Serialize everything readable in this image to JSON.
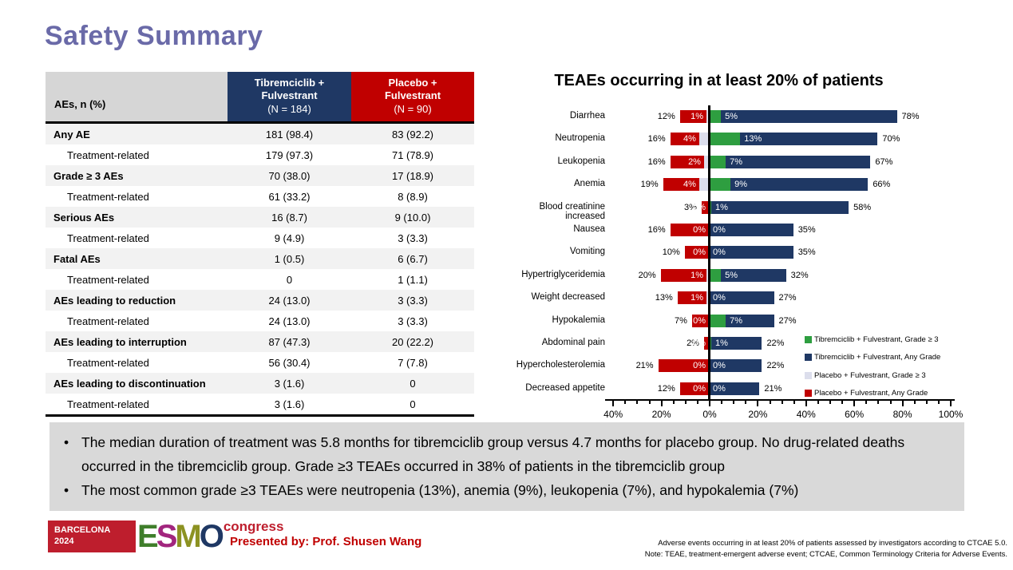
{
  "slide": {
    "title": "Safety Summary"
  },
  "table": {
    "header_label": "AEs, n (%)",
    "col_tibre": {
      "line1": "Tibremciclib +",
      "line2": "Fulvestrant",
      "n": "(N = 184)"
    },
    "col_placebo": {
      "line1": "Placebo +",
      "line2": "Fulvestrant",
      "n": "(N = 90)"
    },
    "rows": [
      {
        "label": "Any AE",
        "bold": true,
        "tibre": "181 (98.4)",
        "placebo": "83 (92.2)"
      },
      {
        "label": "Treatment-related",
        "bold": false,
        "tibre": "179 (97.3)",
        "placebo": "71 (78.9)"
      },
      {
        "label": "Grade ≥ 3 AEs",
        "bold": true,
        "tibre": "70 (38.0)",
        "placebo": "17 (18.9)"
      },
      {
        "label": "Treatment-related",
        "bold": false,
        "tibre": "61 (33.2)",
        "placebo": "8 (8.9)"
      },
      {
        "label": "Serious AEs",
        "bold": true,
        "tibre": "16 (8.7)",
        "placebo": "9 (10.0)"
      },
      {
        "label": "Treatment-related",
        "bold": false,
        "tibre": "9 (4.9)",
        "placebo": "3 (3.3)"
      },
      {
        "label": "Fatal AEs",
        "bold": true,
        "tibre": "1 (0.5)",
        "placebo": "6 (6.7)"
      },
      {
        "label": "Treatment-related",
        "bold": false,
        "tibre": "0",
        "placebo": "1 (1.1)"
      },
      {
        "label": "AEs leading to reduction",
        "bold": true,
        "tibre": "24 (13.0)",
        "placebo": "3 (3.3)"
      },
      {
        "label": "Treatment-related",
        "bold": false,
        "tibre": "24 (13.0)",
        "placebo": "3 (3.3)"
      },
      {
        "label": "AEs leading to interruption",
        "bold": true,
        "tibre": "87 (47.3)",
        "placebo": "20 (22.2)"
      },
      {
        "label": "Treatment-related",
        "bold": false,
        "tibre": "56 (30.4)",
        "placebo": "7 (7.8)"
      },
      {
        "label": "AEs leading to discontinuation",
        "bold": true,
        "tibre": "3 (1.6)",
        "placebo": "0"
      },
      {
        "label": "Treatment-related",
        "bold": false,
        "tibre": "3 (1.6)",
        "placebo": "0"
      }
    ]
  },
  "chart_data": {
    "type": "bar",
    "subtype": "diverging horizontal tornado, grade ≥3 overlaid from center",
    "title": "TEAEs occurring in at least 20% of patients",
    "categories": [
      "Diarrhea",
      "Neutropenia",
      "Leukopenia",
      "Anemia",
      "Blood creatinine increased",
      "Nausea",
      "Vomiting",
      "Hypertriglyceridemia",
      "Weight decreased",
      "Hypokalemia",
      "Abdominal pain",
      "Hypercholesterolemia",
      "Decreased appetite"
    ],
    "series": [
      {
        "name": "Tibremciclib + Fulvestrant,  Grade ≥ 3",
        "side": "right",
        "color": "#2E9E40",
        "values": [
          5,
          13,
          7,
          9,
          1,
          0,
          0,
          5,
          0,
          7,
          1,
          0,
          0
        ]
      },
      {
        "name": "Tibremciclib + Fulvestrant, Any Grade",
        "side": "right",
        "color": "#1F3864",
        "values": [
          78,
          70,
          67,
          66,
          58,
          35,
          35,
          32,
          27,
          27,
          22,
          22,
          21
        ]
      },
      {
        "name": "Placebo + Fulvestrant, Grade ≥ 3",
        "side": "left",
        "color": "#DCDEEC",
        "values": [
          1,
          4,
          2,
          4,
          0,
          0,
          0,
          1,
          1,
          0,
          0,
          0,
          0
        ]
      },
      {
        "name": "Placebo + Fulvestrant, Any Grade",
        "side": "left",
        "color": "#C00000",
        "values": [
          12,
          16,
          16,
          19,
          3,
          16,
          10,
          20,
          13,
          7,
          2,
          21,
          12
        ]
      }
    ],
    "unit": "%",
    "x_tick_labels": [
      "40%",
      "20%",
      "0%",
      "20%",
      "40%",
      "60%",
      "80%",
      "100%"
    ],
    "xlim_left_pct": 40,
    "xlim_right_pct": 100,
    "grid": false,
    "legend_position": "bottom-right inside plot"
  },
  "summary": {
    "bullets": [
      "The median duration of treatment was 5.8 months for tibremciclib group versus 4.7 months for placebo group. No drug-related deaths occurred in the tibremciclib group. Grade ≥3 TEAEs occurred in 38% of patients in the tibremciclib group",
      "The most common grade ≥3 TEAEs were neutropenia (13%), anemia (9%), leukopenia (7%), and hypokalemia (7%)"
    ]
  },
  "footer": {
    "logo_city": "BARCELONA",
    "logo_year": "2024",
    "logo_letters": [
      "E",
      "S",
      "M",
      "O"
    ],
    "logo_congress": "congress",
    "presented_by": "Presented by: Prof. Shusen Wang",
    "footnote_line1": "Adverse events occurring in at least 20% of patients assessed by investigators according to CTCAE 5.0.",
    "footnote_line2": "Note: TEAE, treatment-emergent adverse event; CTCAE, Common Terminology Criteria for Adverse Events."
  },
  "colors": {
    "title_purple": "#6A6AA8",
    "tibre_navy": "#1F3864",
    "placebo_red": "#C00000",
    "grade3_green": "#2E9E40",
    "grade3_placebo_light": "#DCDEEC",
    "table_header_gray": "#D6D6D6",
    "row_stripe": "#F2F2F2",
    "summary_bg": "#D9D9D9",
    "logo_red": "#BE1E2D"
  }
}
